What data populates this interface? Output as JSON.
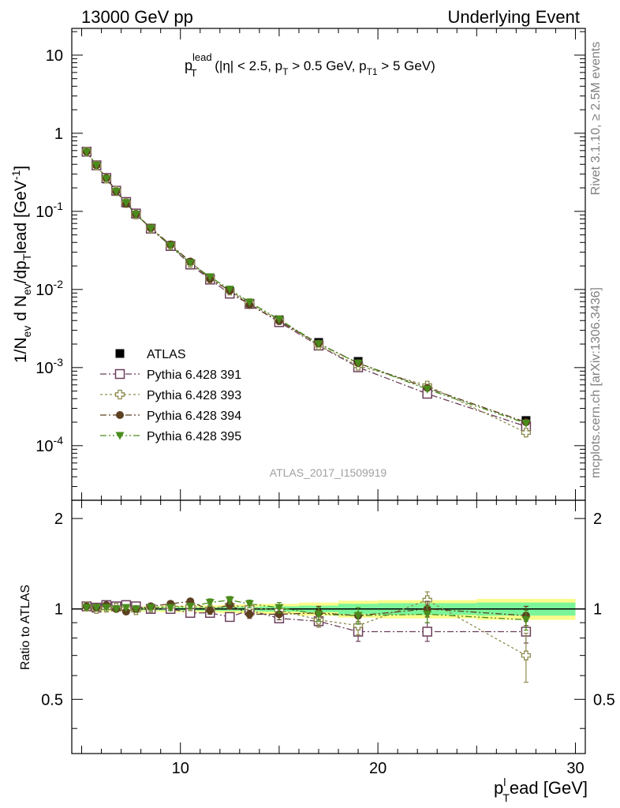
{
  "header": {
    "left": "13000 GeV pp",
    "right": "Underlying Event"
  },
  "side_labels": {
    "rivet": "Rivet 3.1.10, ≥ 2.5M events",
    "mcplots": "mcplots.cern.ch [arXiv:1306.3436]"
  },
  "watermark": "ATLAS_2017_I1509919",
  "chart_data": {
    "type": "line",
    "title_main": "p",
    "title_sup": "lead",
    "title_sub": "T",
    "title_rest_1": " (|η| < 2.5, p",
    "title_rest_1_sub": "T",
    "title_rest_2": " > 0.5 GeV, p",
    "title_rest_2_sub": "T1",
    "title_rest_3": " > 5 GeV)",
    "ylabel_a": "1/N",
    "ylabel_a_sub": "ev",
    "ylabel_b": " d N",
    "ylabel_b_sub": "ev",
    "ylabel_c": "/dp",
    "ylabel_c_sub": "T",
    "ylabel_d": "lead [GeV",
    "ylabel_d_sup": "-1",
    "ylabel_e": "]",
    "xlabel_a": "p",
    "xlabel_a_sup": "l",
    "xlabel_a_sub": "T",
    "xlabel_b": "ead [GeV]",
    "ratio_ylabel": "Ratio to ATLAS",
    "xlim": [
      4.5,
      30.5
    ],
    "ylim": [
      2e-05,
      22
    ],
    "ratio_ylim": [
      0.33,
      2.3
    ],
    "yscale": "log",
    "x_ticks": [
      "10",
      "20",
      "30"
    ],
    "y_ticks_main": [
      {
        "base": "10",
        "exp": "-4"
      },
      {
        "base": "10",
        "exp": "-3"
      },
      {
        "base": "10",
        "exp": "-2"
      },
      {
        "base": "10",
        "exp": "-1"
      },
      {
        "base": "1",
        "exp": ""
      },
      {
        "base": "10",
        "exp": ""
      }
    ],
    "y_ticks_ratio": [
      "0.5",
      "1",
      "2"
    ],
    "x": [
      5.25,
      5.75,
      6.25,
      6.75,
      7.25,
      7.75,
      8.5,
      9.5,
      10.5,
      11.5,
      12.5,
      13.5,
      15,
      17,
      19,
      22.5,
      27.5
    ],
    "atlas": [
      0.57,
      0.385,
      0.26,
      0.18,
      0.128,
      0.092,
      0.06,
      0.036,
      0.0215,
      0.0138,
      0.0094,
      0.0066,
      0.0041,
      0.0021,
      0.0012,
      0.00055,
      0.00021
    ],
    "band_inner": [
      0.01,
      0.01,
      0.01,
      0.01,
      0.01,
      0.01,
      0.01,
      0.012,
      0.012,
      0.013,
      0.015,
      0.016,
      0.02,
      0.025,
      0.04,
      0.045,
      0.05
    ],
    "band_outer": [
      0.02,
      0.02,
      0.02,
      0.02,
      0.02,
      0.02,
      0.02,
      0.025,
      0.025,
      0.028,
      0.032,
      0.035,
      0.04,
      0.05,
      0.065,
      0.07,
      0.08
    ],
    "legend_position": "lower-left",
    "series": [
      {
        "name": "ATLAS",
        "marker": "filled-square",
        "color": "#000000"
      },
      {
        "name": "Pythia 6.428 391",
        "marker": "open-square",
        "color": "#6b3f5a",
        "ratio": [
          1.02,
          1.01,
          1.03,
          1.02,
          1.03,
          1.02,
          1.0,
          1.0,
          0.97,
          0.97,
          0.94,
          0.99,
          0.93,
          0.91,
          0.84,
          0.84,
          0.84
        ],
        "err": [
          0.01,
          0.01,
          0.01,
          0.01,
          0.01,
          0.01,
          0.015,
          0.015,
          0.02,
          0.02,
          0.03,
          0.03,
          0.03,
          0.04,
          0.06,
          0.06,
          0.07
        ]
      },
      {
        "name": "Pythia 6.428 393",
        "marker": "open-cross",
        "color": "#8c8a4c",
        "ratio": [
          1.02,
          1.0,
          1.01,
          1.01,
          1.0,
          0.99,
          1.01,
          1.02,
          1.02,
          1.0,
          1.03,
          1.01,
          0.99,
          0.92,
          0.88,
          1.07,
          0.7
        ],
        "err": [
          0.01,
          0.01,
          0.01,
          0.01,
          0.01,
          0.015,
          0.015,
          0.02,
          0.02,
          0.03,
          0.03,
          0.03,
          0.04,
          0.05,
          0.06,
          0.07,
          0.13
        ]
      },
      {
        "name": "Pythia 6.428 394",
        "marker": "filled-circle",
        "color": "#5c4020",
        "ratio": [
          1.02,
          1.01,
          1.03,
          1.0,
          0.98,
          1.0,
          1.02,
          1.04,
          1.06,
          0.99,
          1.03,
          0.96,
          0.96,
          0.97,
          0.95,
          1.0,
          0.95
        ],
        "err": [
          0.01,
          0.01,
          0.01,
          0.01,
          0.01,
          0.01,
          0.015,
          0.02,
          0.02,
          0.03,
          0.03,
          0.03,
          0.04,
          0.05,
          0.06,
          0.06,
          0.07
        ]
      },
      {
        "name": "Pythia 6.428 395",
        "marker": "filled-triangle",
        "color": "#4a8c1c",
        "ratio": [
          1.01,
          1.01,
          1.01,
          1.0,
          1.01,
          1.0,
          1.01,
          1.01,
          1.02,
          1.05,
          1.07,
          1.04,
          1.01,
          0.96,
          0.95,
          0.96,
          0.92
        ],
        "err": [
          0.01,
          0.01,
          0.01,
          0.01,
          0.01,
          0.01,
          0.015,
          0.02,
          0.02,
          0.03,
          0.03,
          0.03,
          0.04,
          0.05,
          0.06,
          0.06,
          0.07
        ]
      }
    ],
    "colors": {
      "band_inner": "#7cf59a",
      "band_outer": "#fbfb8a"
    }
  }
}
